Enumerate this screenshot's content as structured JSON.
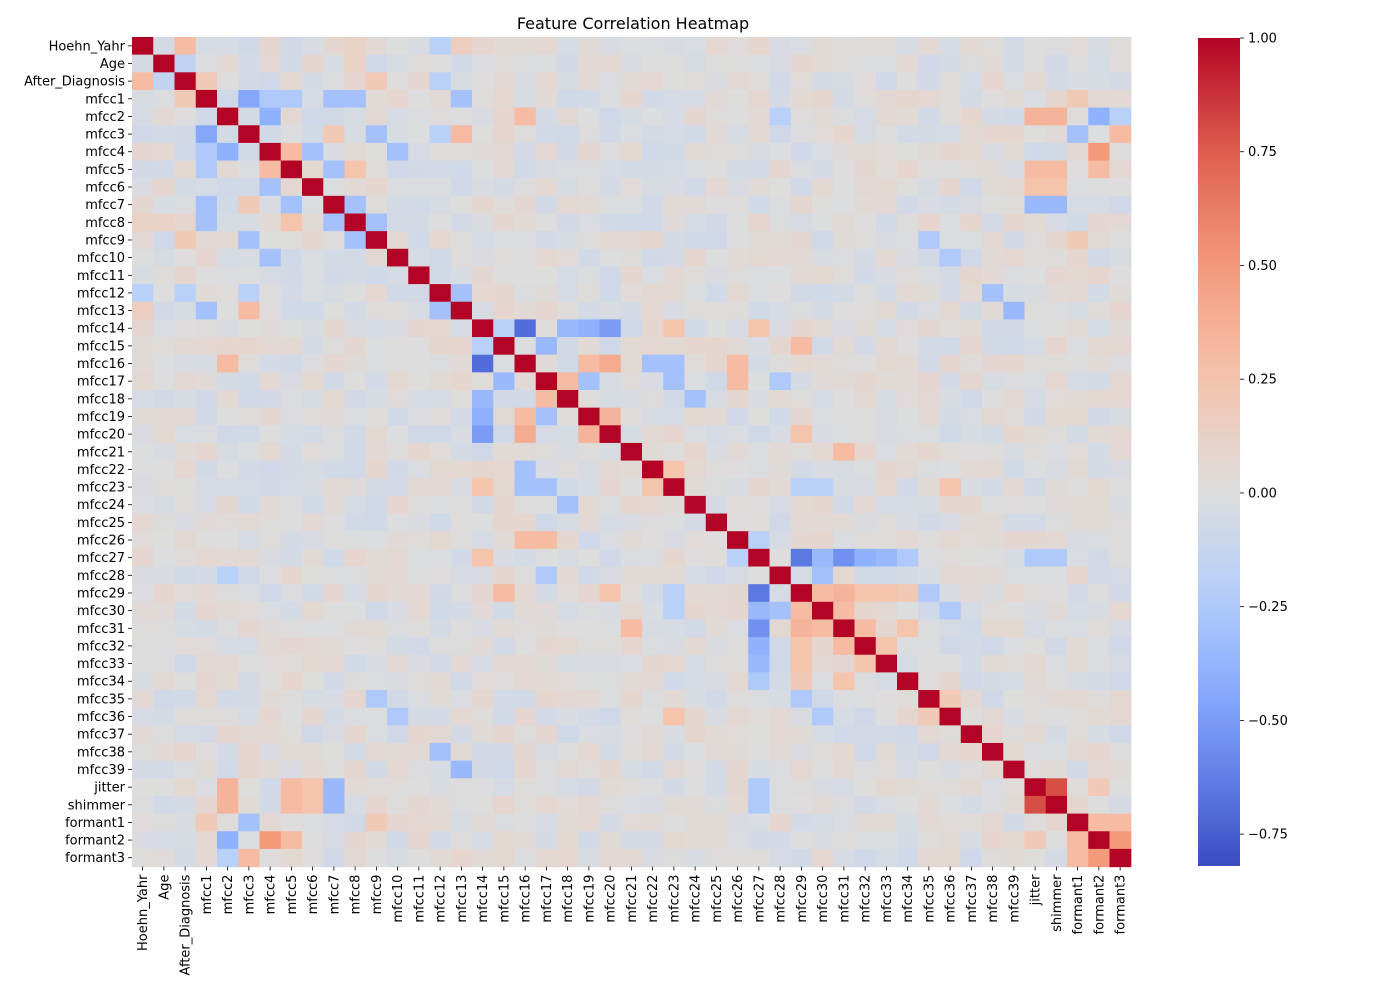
{
  "chart_data": {
    "type": "heatmap",
    "title": "Feature Correlation Heatmap",
    "xlabel": "",
    "ylabel": "",
    "labels": [
      "Hoehn_Yahr",
      "Age",
      "After_Diagnosis",
      "mfcc1",
      "mfcc2",
      "mfcc3",
      "mfcc4",
      "mfcc5",
      "mfcc6",
      "mfcc7",
      "mfcc8",
      "mfcc9",
      "mfcc10",
      "mfcc11",
      "mfcc12",
      "mfcc13",
      "mfcc14",
      "mfcc15",
      "mfcc16",
      "mfcc17",
      "mfcc18",
      "mfcc19",
      "mfcc20",
      "mfcc21",
      "mfcc22",
      "mfcc23",
      "mfcc24",
      "mfcc25",
      "mfcc26",
      "mfcc27",
      "mfcc28",
      "mfcc29",
      "mfcc30",
      "mfcc31",
      "mfcc32",
      "mfcc33",
      "mfcc34",
      "mfcc35",
      "mfcc36",
      "mfcc37",
      "mfcc38",
      "mfcc39",
      "jitter",
      "shimmer",
      "formant1",
      "formant2",
      "formant3"
    ],
    "colormap": "coolwarm",
    "vmin": -0.82,
    "vmax": 1.0,
    "colorbar_ticks": [
      1.0,
      0.75,
      0.5,
      0.25,
      0.0,
      -0.25,
      -0.5,
      -0.75
    ],
    "colorbar_tick_labels": [
      "1.00",
      "0.75",
      "0.50",
      "0.25",
      "0.00",
      "−0.25",
      "−0.50",
      "−0.75"
    ],
    "cells": [
      {
        "r": "Hoehn_Yahr",
        "c": "After_Diagnosis",
        "v": 0.3
      },
      {
        "r": "Hoehn_Yahr",
        "c": "mfcc12",
        "v": -0.2
      },
      {
        "r": "Hoehn_Yahr",
        "c": "mfcc13",
        "v": 0.15
      },
      {
        "r": "Hoehn_Yahr",
        "c": "mfcc8",
        "v": 0.12
      },
      {
        "r": "Age",
        "c": "After_Diagnosis",
        "v": -0.15
      },
      {
        "r": "Age",
        "c": "mfcc8",
        "v": 0.12
      },
      {
        "r": "After_Diagnosis",
        "c": "mfcc1",
        "v": 0.2
      },
      {
        "r": "After_Diagnosis",
        "c": "mfcc9",
        "v": 0.2
      },
      {
        "r": "After_Diagnosis",
        "c": "mfcc12",
        "v": -0.2
      },
      {
        "r": "mfcc1",
        "c": "mfcc3",
        "v": -0.45
      },
      {
        "r": "mfcc1",
        "c": "mfcc4",
        "v": -0.25
      },
      {
        "r": "mfcc1",
        "c": "mfcc5",
        "v": -0.25
      },
      {
        "r": "mfcc1",
        "c": "mfcc7",
        "v": -0.3
      },
      {
        "r": "mfcc1",
        "c": "mfcc8",
        "v": -0.3
      },
      {
        "r": "mfcc1",
        "c": "mfcc13",
        "v": -0.3
      },
      {
        "r": "mfcc1",
        "c": "formant1",
        "v": 0.2
      },
      {
        "r": "mfcc2",
        "c": "mfcc4",
        "v": -0.4
      },
      {
        "r": "mfcc2",
        "c": "mfcc16",
        "v": 0.3
      },
      {
        "r": "mfcc2",
        "c": "mfcc28",
        "v": -0.2
      },
      {
        "r": "mfcc2",
        "c": "jitter",
        "v": 0.35
      },
      {
        "r": "mfcc2",
        "c": "shimmer",
        "v": 0.35
      },
      {
        "r": "mfcc2",
        "c": "formant2",
        "v": -0.4
      },
      {
        "r": "mfcc2",
        "c": "formant3",
        "v": -0.2
      },
      {
        "r": "mfcc3",
        "c": "mfcc9",
        "v": -0.3
      },
      {
        "r": "mfcc3",
        "c": "mfcc13",
        "v": 0.3
      },
      {
        "r": "mfcc3",
        "c": "mfcc12",
        "v": -0.2
      },
      {
        "r": "mfcc3",
        "c": "mfcc7",
        "v": 0.2
      },
      {
        "r": "mfcc3",
        "c": "formant1",
        "v": -0.3
      },
      {
        "r": "mfcc3",
        "c": "formant3",
        "v": 0.3
      },
      {
        "r": "mfcc4",
        "c": "mfcc5",
        "v": 0.3
      },
      {
        "r": "mfcc4",
        "c": "mfcc6",
        "v": -0.3
      },
      {
        "r": "mfcc4",
        "c": "mfcc10",
        "v": -0.3
      },
      {
        "r": "mfcc4",
        "c": "formant2",
        "v": 0.5
      },
      {
        "r": "mfcc5",
        "c": "mfcc7",
        "v": -0.3
      },
      {
        "r": "mfcc5",
        "c": "mfcc8",
        "v": 0.25
      },
      {
        "r": "mfcc5",
        "c": "jitter",
        "v": 0.3
      },
      {
        "r": "mfcc5",
        "c": "shimmer",
        "v": 0.3
      },
      {
        "r": "mfcc5",
        "c": "formant2",
        "v": 0.3
      },
      {
        "r": "mfcc6",
        "c": "jitter",
        "v": 0.25
      },
      {
        "r": "mfcc6",
        "c": "shimmer",
        "v": 0.25
      },
      {
        "r": "mfcc7",
        "c": "mfcc8",
        "v": -0.3
      },
      {
        "r": "mfcc7",
        "c": "jitter",
        "v": -0.35
      },
      {
        "r": "mfcc7",
        "c": "shimmer",
        "v": -0.35
      },
      {
        "r": "mfcc8",
        "c": "mfcc9",
        "v": -0.3
      },
      {
        "r": "mfcc9",
        "c": "mfcc35",
        "v": -0.25
      },
      {
        "r": "mfcc9",
        "c": "formant1",
        "v": 0.2
      },
      {
        "r": "mfcc10",
        "c": "mfcc36",
        "v": -0.25
      },
      {
        "r": "mfcc12",
        "c": "mfcc13",
        "v": -0.3
      },
      {
        "r": "mfcc12",
        "c": "mfcc38",
        "v": -0.3
      },
      {
        "r": "mfcc13",
        "c": "mfcc39",
        "v": -0.35
      },
      {
        "r": "mfcc14",
        "c": "mfcc16",
        "v": -0.7
      },
      {
        "r": "mfcc14",
        "c": "mfcc15",
        "v": -0.2
      },
      {
        "r": "mfcc14",
        "c": "mfcc18",
        "v": -0.35
      },
      {
        "r": "mfcc14",
        "c": "mfcc19",
        "v": -0.4
      },
      {
        "r": "mfcc14",
        "c": "mfcc20",
        "v": -0.5
      },
      {
        "r": "mfcc14",
        "c": "mfcc23",
        "v": 0.25
      },
      {
        "r": "mfcc14",
        "c": "mfcc27",
        "v": 0.25
      },
      {
        "r": "mfcc15",
        "c": "mfcc17",
        "v": -0.35
      },
      {
        "r": "mfcc15",
        "c": "mfcc29",
        "v": 0.3
      },
      {
        "r": "mfcc16",
        "c": "mfcc20",
        "v": 0.4
      },
      {
        "r": "mfcc16",
        "c": "mfcc19",
        "v": 0.3
      },
      {
        "r": "mfcc16",
        "c": "mfcc22",
        "v": -0.3
      },
      {
        "r": "mfcc16",
        "c": "mfcc23",
        "v": -0.3
      },
      {
        "r": "mfcc16",
        "c": "mfcc26",
        "v": 0.3
      },
      {
        "r": "mfcc17",
        "c": "mfcc18",
        "v": 0.3
      },
      {
        "r": "mfcc17",
        "c": "mfcc19",
        "v": -0.3
      },
      {
        "r": "mfcc17",
        "c": "mfcc23",
        "v": -0.3
      },
      {
        "r": "mfcc17",
        "c": "mfcc26",
        "v": 0.3
      },
      {
        "r": "mfcc17",
        "c": "mfcc28",
        "v": -0.25
      },
      {
        "r": "mfcc18",
        "c": "mfcc24",
        "v": -0.3
      },
      {
        "r": "mfcc19",
        "c": "mfcc20",
        "v": 0.35
      },
      {
        "r": "mfcc20",
        "c": "mfcc29",
        "v": 0.25
      },
      {
        "r": "mfcc21",
        "c": "mfcc31",
        "v": 0.3
      },
      {
        "r": "mfcc22",
        "c": "mfcc23",
        "v": 0.25
      },
      {
        "r": "mfcc23",
        "c": "mfcc36",
        "v": 0.25
      },
      {
        "r": "mfcc23",
        "c": "mfcc29",
        "v": -0.2
      },
      {
        "r": "mfcc23",
        "c": "mfcc30",
        "v": -0.2
      },
      {
        "r": "mfcc26",
        "c": "mfcc27",
        "v": -0.2
      },
      {
        "r": "mfcc27",
        "c": "mfcc29",
        "v": -0.65
      },
      {
        "r": "mfcc27",
        "c": "mfcc30",
        "v": -0.35
      },
      {
        "r": "mfcc27",
        "c": "mfcc31",
        "v": -0.55
      },
      {
        "r": "mfcc27",
        "c": "mfcc32",
        "v": -0.4
      },
      {
        "r": "mfcc27",
        "c": "mfcc33",
        "v": -0.35
      },
      {
        "r": "mfcc27",
        "c": "mfcc34",
        "v": -0.25
      },
      {
        "r": "mfcc27",
        "c": "jitter",
        "v": -0.25
      },
      {
        "r": "mfcc27",
        "c": "shimmer",
        "v": -0.25
      },
      {
        "r": "mfcc28",
        "c": "mfcc30",
        "v": -0.3
      },
      {
        "r": "mfcc29",
        "c": "mfcc30",
        "v": 0.3
      },
      {
        "r": "mfcc29",
        "c": "mfcc31",
        "v": 0.35
      },
      {
        "r": "mfcc29",
        "c": "mfcc32",
        "v": 0.25
      },
      {
        "r": "mfcc29",
        "c": "mfcc33",
        "v": 0.25
      },
      {
        "r": "mfcc29",
        "c": "mfcc34",
        "v": 0.2
      },
      {
        "r": "mfcc29",
        "c": "mfcc35",
        "v": -0.25
      },
      {
        "r": "mfcc30",
        "c": "mfcc31",
        "v": 0.3
      },
      {
        "r": "mfcc30",
        "c": "mfcc36",
        "v": -0.25
      },
      {
        "r": "mfcc31",
        "c": "mfcc32",
        "v": 0.3
      },
      {
        "r": "mfcc31",
        "c": "mfcc34",
        "v": 0.25
      },
      {
        "r": "mfcc32",
        "c": "mfcc33",
        "v": 0.25
      },
      {
        "r": "mfcc35",
        "c": "mfcc36",
        "v": 0.2
      },
      {
        "r": "jitter",
        "c": "shimmer",
        "v": 0.8
      },
      {
        "r": "jitter",
        "c": "formant2",
        "v": 0.2
      },
      {
        "r": "formant1",
        "c": "formant2",
        "v": 0.3
      },
      {
        "r": "formant1",
        "c": "formant3",
        "v": 0.3
      },
      {
        "r": "formant2",
        "c": "formant3",
        "v": 0.5
      }
    ]
  }
}
